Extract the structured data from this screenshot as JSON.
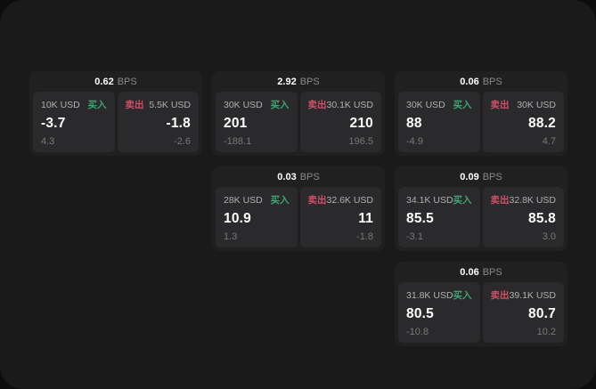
{
  "labels": {
    "bps_unit": "BPS",
    "buy": "买入",
    "sell": "卖出"
  },
  "colors": {
    "buy": "#40a372",
    "sell": "#d14f67",
    "panel_background": "#2a2a2c",
    "card_background": "#202021",
    "app_background": "#1a1a1b"
  },
  "cards": [
    {
      "grid": {
        "row": 1,
        "col": 1
      },
      "bps": "0.62",
      "buy": {
        "size": "10K USD",
        "price": "-3.7",
        "sub": "4.3"
      },
      "sell": {
        "size": "5.5K USD",
        "price": "-1.8",
        "sub": "-2.6"
      }
    },
    {
      "grid": {
        "row": 1,
        "col": 2
      },
      "bps": "2.92",
      "buy": {
        "size": "30K USD",
        "price": "201",
        "sub": "-188.1"
      },
      "sell": {
        "size": "30.1K USD",
        "price": "210",
        "sub": "196.5"
      }
    },
    {
      "grid": {
        "row": 1,
        "col": 3
      },
      "bps": "0.06",
      "buy": {
        "size": "30K USD",
        "price": "88",
        "sub": "-4.9"
      },
      "sell": {
        "size": "30K USD",
        "price": "88.2",
        "sub": "4.7"
      }
    },
    {
      "grid": {
        "row": 2,
        "col": 2
      },
      "bps": "0.03",
      "buy": {
        "size": "28K USD",
        "price": "10.9",
        "sub": "1.3"
      },
      "sell": {
        "size": "32.6K USD",
        "price": "11",
        "sub": "-1.8"
      }
    },
    {
      "grid": {
        "row": 2,
        "col": 3
      },
      "bps": "0.09",
      "buy": {
        "size": "34.1K USD",
        "price": "85.5",
        "sub": "-3.1"
      },
      "sell": {
        "size": "32.8K USD",
        "price": "85.8",
        "sub": "3.0"
      }
    },
    {
      "grid": {
        "row": 3,
        "col": 3
      },
      "bps": "0.06",
      "buy": {
        "size": "31.8K USD",
        "price": "80.5",
        "sub": "-10.8"
      },
      "sell": {
        "size": "39.1K USD",
        "price": "80.7",
        "sub": "10.2"
      }
    }
  ]
}
